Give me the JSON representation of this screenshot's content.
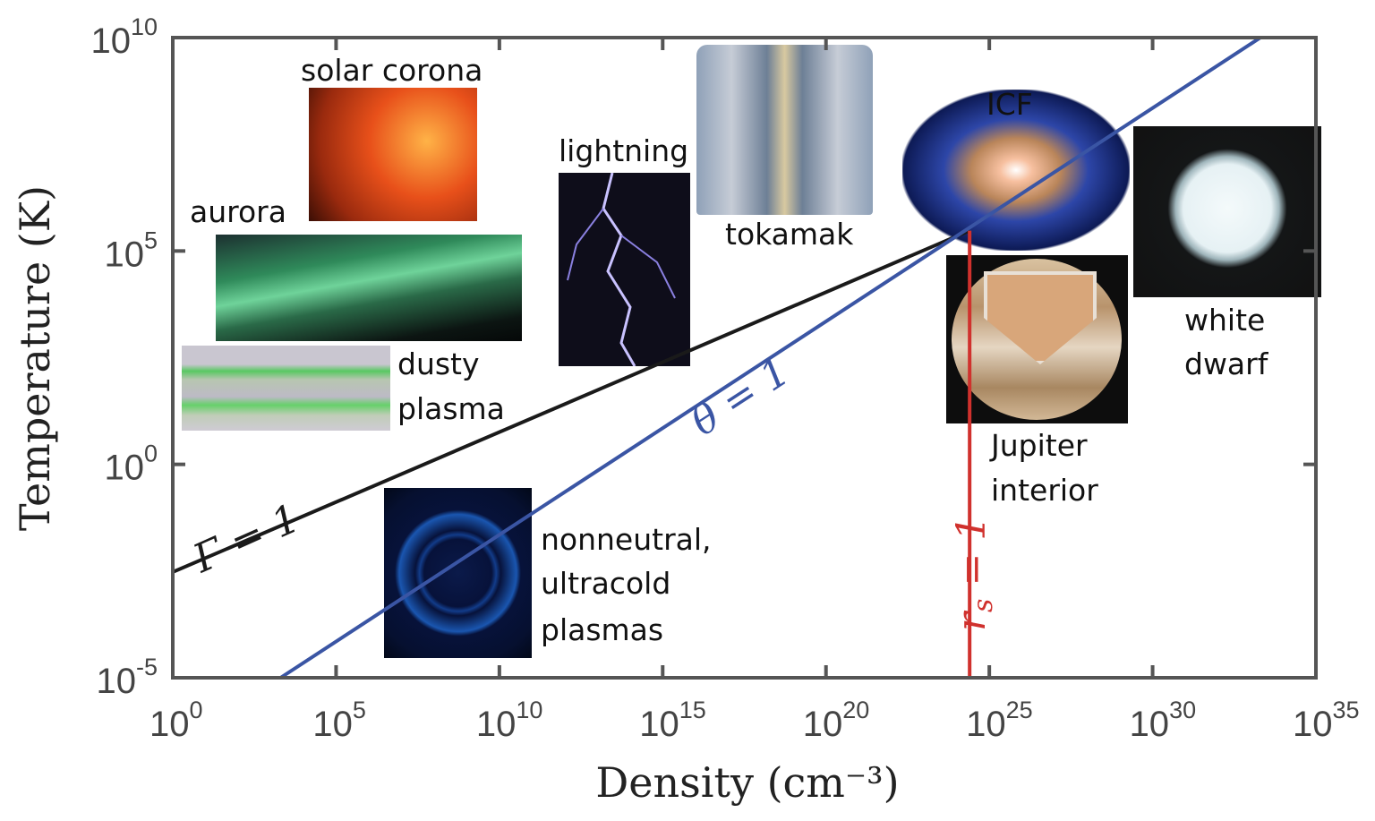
{
  "chart_data": {
    "type": "line",
    "xlabel": "Density (cm⁻³)",
    "ylabel": "Temperature (K)",
    "x_scale": "log",
    "y_scale": "log",
    "xlim": [
      1.0,
      1e+35
    ],
    "ylim": [
      1e-05,
      10000000000.0
    ],
    "grid": false,
    "x_ticks": [
      {
        "exp": "0"
      },
      {
        "exp": "5"
      },
      {
        "exp": "10"
      },
      {
        "exp": "15"
      },
      {
        "exp": "20"
      },
      {
        "exp": "25"
      },
      {
        "exp": "30"
      },
      {
        "exp": "35"
      }
    ],
    "y_ticks": [
      {
        "exp": "-5"
      },
      {
        "exp": "0"
      },
      {
        "exp": "5"
      },
      {
        "exp": "10"
      }
    ],
    "tick_base": "10",
    "series": [
      {
        "name": "Γ = 1",
        "color": "#1a1a1a",
        "x": [
          1.0,
          2.5e+24
        ],
        "y": [
          0.003,
          300000.0
        ]
      },
      {
        "name": "θ = 1",
        "color": "#3a55a4",
        "x": [
          2000.0,
          2e+33
        ],
        "y": [
          1e-05,
          10000000000.0
        ]
      },
      {
        "name": "r_s = 1",
        "color": "#d0312d",
        "x": [
          2.5e+24,
          2.5e+24
        ],
        "y": [
          1e-05,
          300000.0
        ]
      }
    ],
    "line_labels": {
      "gamma": "Γ = 1",
      "theta": "θ = 1",
      "rs_r": "r",
      "rs_s": "s",
      "rs_eq": " = 1"
    },
    "annotations": {
      "solar_corona": "solar corona",
      "aurora": "aurora",
      "dusty_1": "dusty",
      "dusty_2": "plasma",
      "lightning": "lightning",
      "tokamak": "tokamak",
      "icf": "ICF",
      "white_dwarf_1": "white",
      "white_dwarf_2": "dwarf",
      "jupiter_1": "Jupiter",
      "jupiter_2": "interior",
      "nonneutral_1": "nonneutral,",
      "nonneutral_2": "ultracold",
      "nonneutral_3": "plasmas"
    }
  }
}
